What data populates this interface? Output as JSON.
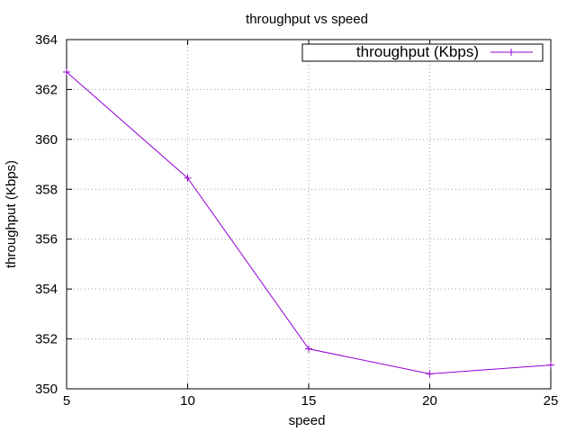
{
  "chart_data": {
    "type": "line",
    "title": "throughput vs speed",
    "xlabel": "speed",
    "ylabel": "throughput (Kbps)",
    "xlim": [
      5,
      25
    ],
    "ylim": [
      350,
      364
    ],
    "xticks": [
      5,
      10,
      15,
      20,
      25
    ],
    "yticks": [
      350,
      352,
      354,
      356,
      358,
      360,
      362,
      364
    ],
    "grid": true,
    "legend_position": "top-right",
    "series": [
      {
        "name": "throughput (Kbps)",
        "color": "#9400d3",
        "marker": "plus",
        "x": [
          5,
          10,
          15,
          20,
          25
        ],
        "y": [
          362.7,
          358.45,
          351.6,
          350.6,
          350.95
        ]
      }
    ]
  }
}
